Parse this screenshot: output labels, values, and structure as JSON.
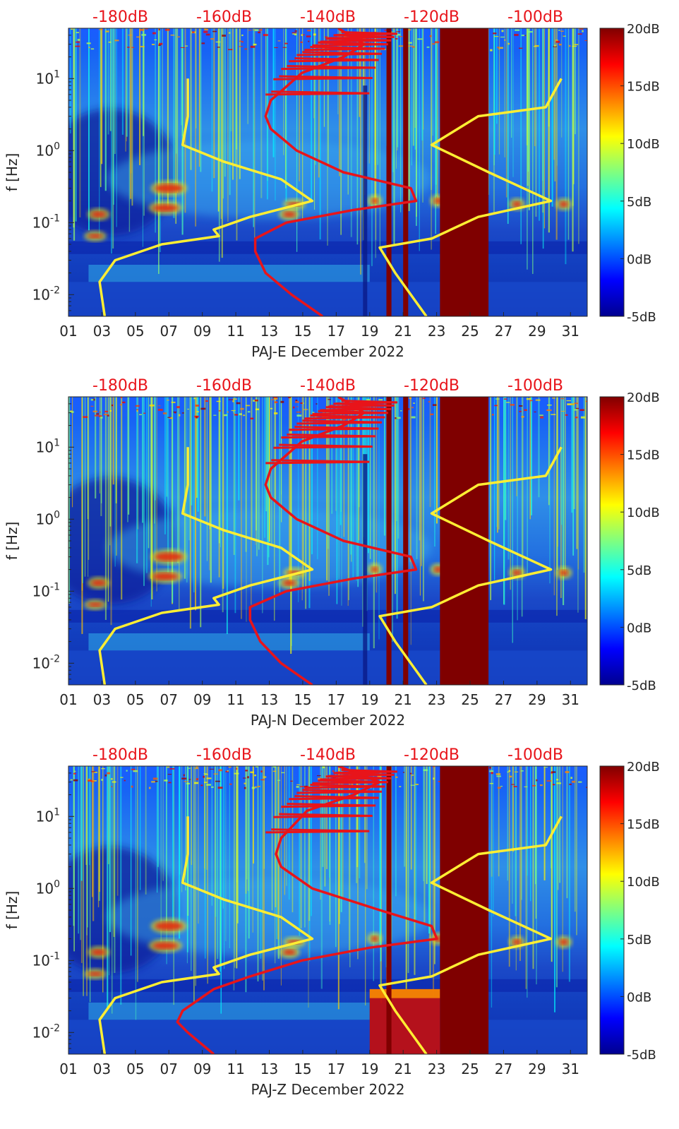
{
  "chart_data": [
    {
      "type": "heatmap",
      "xlabel": "PAJ-E December 2022",
      "ylabel": "f [Hz]",
      "y_scale": "log",
      "ylim": [
        0.005,
        50
      ],
      "xlim": [
        1,
        32
      ],
      "x_ticks": [
        "01",
        "03",
        "05",
        "07",
        "09",
        "11",
        "13",
        "15",
        "17",
        "19",
        "21",
        "23",
        "25",
        "27",
        "29",
        "31"
      ],
      "y_ticks": [
        "10^-2",
        "10^-1",
        "10^0",
        "10^1"
      ],
      "top_axis_ticks": [
        "-180dB",
        "-160dB",
        "-140dB",
        "-120dB",
        "-100dB"
      ],
      "colorbar": {
        "colormap": "jet",
        "range": [
          -5,
          20
        ],
        "ticks": [
          "20dB",
          "15dB",
          "10dB",
          "5dB",
          "0dB",
          "-5dB"
        ]
      },
      "data_gaps_days": [
        [
          20.0,
          20.3
        ],
        [
          21.0,
          21.3
        ],
        [
          23.2,
          26.1
        ]
      ],
      "red_curve_psd_db": [
        [
          50,
          -138
        ],
        [
          30,
          -133
        ],
        [
          20,
          -137
        ],
        [
          12,
          -145
        ],
        [
          5,
          -151
        ],
        [
          3,
          -152
        ],
        [
          2,
          -151
        ],
        [
          1,
          -146
        ],
        [
          0.5,
          -137
        ],
        [
          0.3,
          -124
        ],
        [
          0.2,
          -123
        ],
        [
          0.15,
          -135
        ],
        [
          0.1,
          -148
        ],
        [
          0.06,
          -154
        ],
        [
          0.04,
          -154
        ],
        [
          0.02,
          -152
        ],
        [
          0.01,
          -147
        ],
        [
          0.005,
          -141
        ]
      ],
      "yellow_curves_psd_db": [
        [
          [
            10,
            -167
          ],
          [
            3,
            -167
          ],
          [
            1.2,
            -168
          ],
          [
            0.7,
            -160
          ],
          [
            0.4,
            -149
          ],
          [
            0.2,
            -143
          ],
          [
            0.12,
            -155
          ],
          [
            0.08,
            -162
          ],
          [
            0.065,
            -161
          ],
          [
            0.05,
            -172
          ],
          [
            0.03,
            -181
          ],
          [
            0.015,
            -184
          ],
          [
            0.005,
            -183
          ]
        ],
        [
          [
            10,
            -95
          ],
          [
            4,
            -98
          ],
          [
            3,
            -111
          ],
          [
            1.2,
            -120
          ],
          [
            0.5,
            -109
          ],
          [
            0.2,
            -97
          ],
          [
            0.12,
            -111
          ],
          [
            0.06,
            -120
          ],
          [
            0.045,
            -130
          ],
          [
            0.02,
            -127
          ],
          [
            0.005,
            -121
          ]
        ]
      ]
    },
    {
      "type": "heatmap",
      "xlabel": "PAJ-N December 2022",
      "ylabel": "f [Hz]",
      "y_scale": "log",
      "ylim": [
        0.005,
        50
      ],
      "xlim": [
        1,
        32
      ],
      "x_ticks": [
        "01",
        "03",
        "05",
        "07",
        "09",
        "11",
        "13",
        "15",
        "17",
        "19",
        "21",
        "23",
        "25",
        "27",
        "29",
        "31"
      ],
      "y_ticks": [
        "10^-2",
        "10^-1",
        "10^0",
        "10^1"
      ],
      "top_axis_ticks": [
        "-180dB",
        "-160dB",
        "-140dB",
        "-120dB",
        "-100dB"
      ],
      "colorbar": {
        "colormap": "jet",
        "range": [
          -5,
          20
        ],
        "ticks": [
          "20dB",
          "15dB",
          "10dB",
          "5dB",
          "0dB",
          "-5dB"
        ]
      },
      "data_gaps_days": [
        [
          20.0,
          20.3
        ],
        [
          21.0,
          21.3
        ],
        [
          23.2,
          26.1
        ]
      ],
      "red_curve_psd_db": [
        [
          50,
          -138
        ],
        [
          30,
          -133
        ],
        [
          20,
          -137
        ],
        [
          12,
          -145
        ],
        [
          5,
          -151
        ],
        [
          3,
          -152
        ],
        [
          2,
          -151
        ],
        [
          1,
          -146
        ],
        [
          0.5,
          -137
        ],
        [
          0.3,
          -124
        ],
        [
          0.2,
          -123
        ],
        [
          0.15,
          -135
        ],
        [
          0.1,
          -148
        ],
        [
          0.06,
          -155
        ],
        [
          0.04,
          -155
        ],
        [
          0.02,
          -153
        ],
        [
          0.01,
          -149
        ],
        [
          0.005,
          -143
        ]
      ],
      "yellow_curves_psd_db": [
        [
          [
            10,
            -167
          ],
          [
            3,
            -167
          ],
          [
            1.2,
            -168
          ],
          [
            0.7,
            -160
          ],
          [
            0.4,
            -149
          ],
          [
            0.2,
            -143
          ],
          [
            0.12,
            -155
          ],
          [
            0.08,
            -162
          ],
          [
            0.065,
            -161
          ],
          [
            0.05,
            -172
          ],
          [
            0.03,
            -181
          ],
          [
            0.015,
            -184
          ],
          [
            0.005,
            -183
          ]
        ],
        [
          [
            10,
            -95
          ],
          [
            4,
            -98
          ],
          [
            3,
            -111
          ],
          [
            1.2,
            -120
          ],
          [
            0.5,
            -109
          ],
          [
            0.2,
            -97
          ],
          [
            0.12,
            -111
          ],
          [
            0.06,
            -120
          ],
          [
            0.045,
            -130
          ],
          [
            0.02,
            -127
          ],
          [
            0.005,
            -121
          ]
        ]
      ]
    },
    {
      "type": "heatmap",
      "xlabel": "PAJ-Z December 2022",
      "ylabel": "f [Hz]",
      "y_scale": "log",
      "ylim": [
        0.005,
        50
      ],
      "xlim": [
        1,
        32
      ],
      "x_ticks": [
        "01",
        "03",
        "05",
        "07",
        "09",
        "11",
        "13",
        "15",
        "17",
        "19",
        "21",
        "23",
        "25",
        "27",
        "29",
        "31"
      ],
      "y_ticks": [
        "10^-2",
        "10^-1",
        "10^0",
        "10^1"
      ],
      "top_axis_ticks": [
        "-180dB",
        "-160dB",
        "-140dB",
        "-120dB",
        "-100dB"
      ],
      "colorbar": {
        "colormap": "jet",
        "range": [
          -5,
          20
        ],
        "ticks": [
          "20dB",
          "15dB",
          "10dB",
          "5dB",
          "0dB",
          "-5dB"
        ]
      },
      "data_gaps_days": [
        [
          20.0,
          20.3
        ],
        [
          23.2,
          26.1
        ]
      ],
      "red_curve_psd_db": [
        [
          50,
          -138
        ],
        [
          30,
          -130
        ],
        [
          20,
          -135
        ],
        [
          12,
          -144
        ],
        [
          5,
          -149
        ],
        [
          3,
          -150
        ],
        [
          2,
          -149
        ],
        [
          1,
          -143
        ],
        [
          0.5,
          -130
        ],
        [
          0.3,
          -120
        ],
        [
          0.2,
          -119
        ],
        [
          0.15,
          -132
        ],
        [
          0.1,
          -145
        ],
        [
          0.06,
          -155
        ],
        [
          0.04,
          -162
        ],
        [
          0.02,
          -168
        ],
        [
          0.014,
          -169
        ],
        [
          0.01,
          -167
        ],
        [
          0.005,
          -162
        ]
      ],
      "yellow_curves_psd_db": [
        [
          [
            10,
            -167
          ],
          [
            3,
            -167
          ],
          [
            1.2,
            -168
          ],
          [
            0.7,
            -160
          ],
          [
            0.4,
            -149
          ],
          [
            0.2,
            -143
          ],
          [
            0.12,
            -155
          ],
          [
            0.08,
            -162
          ],
          [
            0.065,
            -161
          ],
          [
            0.05,
            -172
          ],
          [
            0.03,
            -181
          ],
          [
            0.015,
            -184
          ],
          [
            0.005,
            -183
          ]
        ],
        [
          [
            10,
            -95
          ],
          [
            4,
            -98
          ],
          [
            3,
            -111
          ],
          [
            1.2,
            -120
          ],
          [
            0.5,
            -109
          ],
          [
            0.2,
            -97
          ],
          [
            0.12,
            -111
          ],
          [
            0.06,
            -120
          ],
          [
            0.045,
            -130
          ],
          [
            0.02,
            -127
          ],
          [
            0.005,
            -121
          ]
        ]
      ]
    }
  ],
  "colors": {
    "red_curve": "#e8141a",
    "yellow_curve": "#ffee33",
    "top_axis_text": "#e8141a",
    "gap_fill": "#7f0000"
  }
}
